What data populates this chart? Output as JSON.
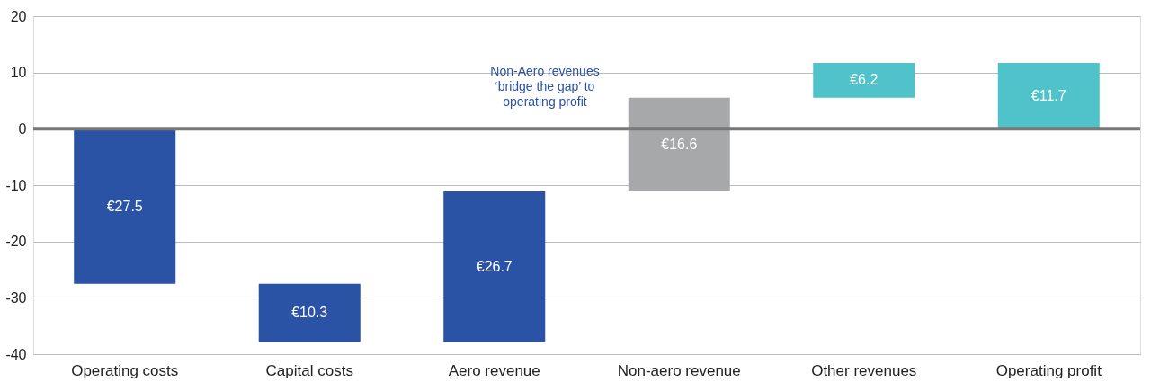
{
  "chart_data": {
    "type": "bar",
    "categories": [
      "Operating costs",
      "Capital costs",
      "Aero revenue",
      "Non-aero revenue",
      "Other revenues",
      "Operating profit"
    ],
    "base": [
      0,
      -27.5,
      -37.8,
      -11.1,
      5.5,
      0
    ],
    "values": [
      -27.5,
      -10.3,
      26.7,
      16.6,
      6.2,
      11.7
    ],
    "value_labels": [
      "€27.5",
      "€10.3",
      "€26.7",
      "€16.6",
      "€6.2",
      "€11.7"
    ],
    "colors": [
      "#2a52a5",
      "#2a52a5",
      "#2a52a5",
      "#a7a8aa",
      "#4fc3c9",
      "#4fc3c9"
    ],
    "ylim": [
      -40,
      20
    ],
    "yticks": [
      -40,
      -30,
      -20,
      -10,
      0,
      10,
      20
    ],
    "grid": "y",
    "ref_lines": [
      {
        "axis": "y",
        "value": 0,
        "color": "#777777"
      }
    ],
    "annotations": [
      "Non-Aero revenues\n‘bridge the gap’ to\noperating profit"
    ]
  }
}
